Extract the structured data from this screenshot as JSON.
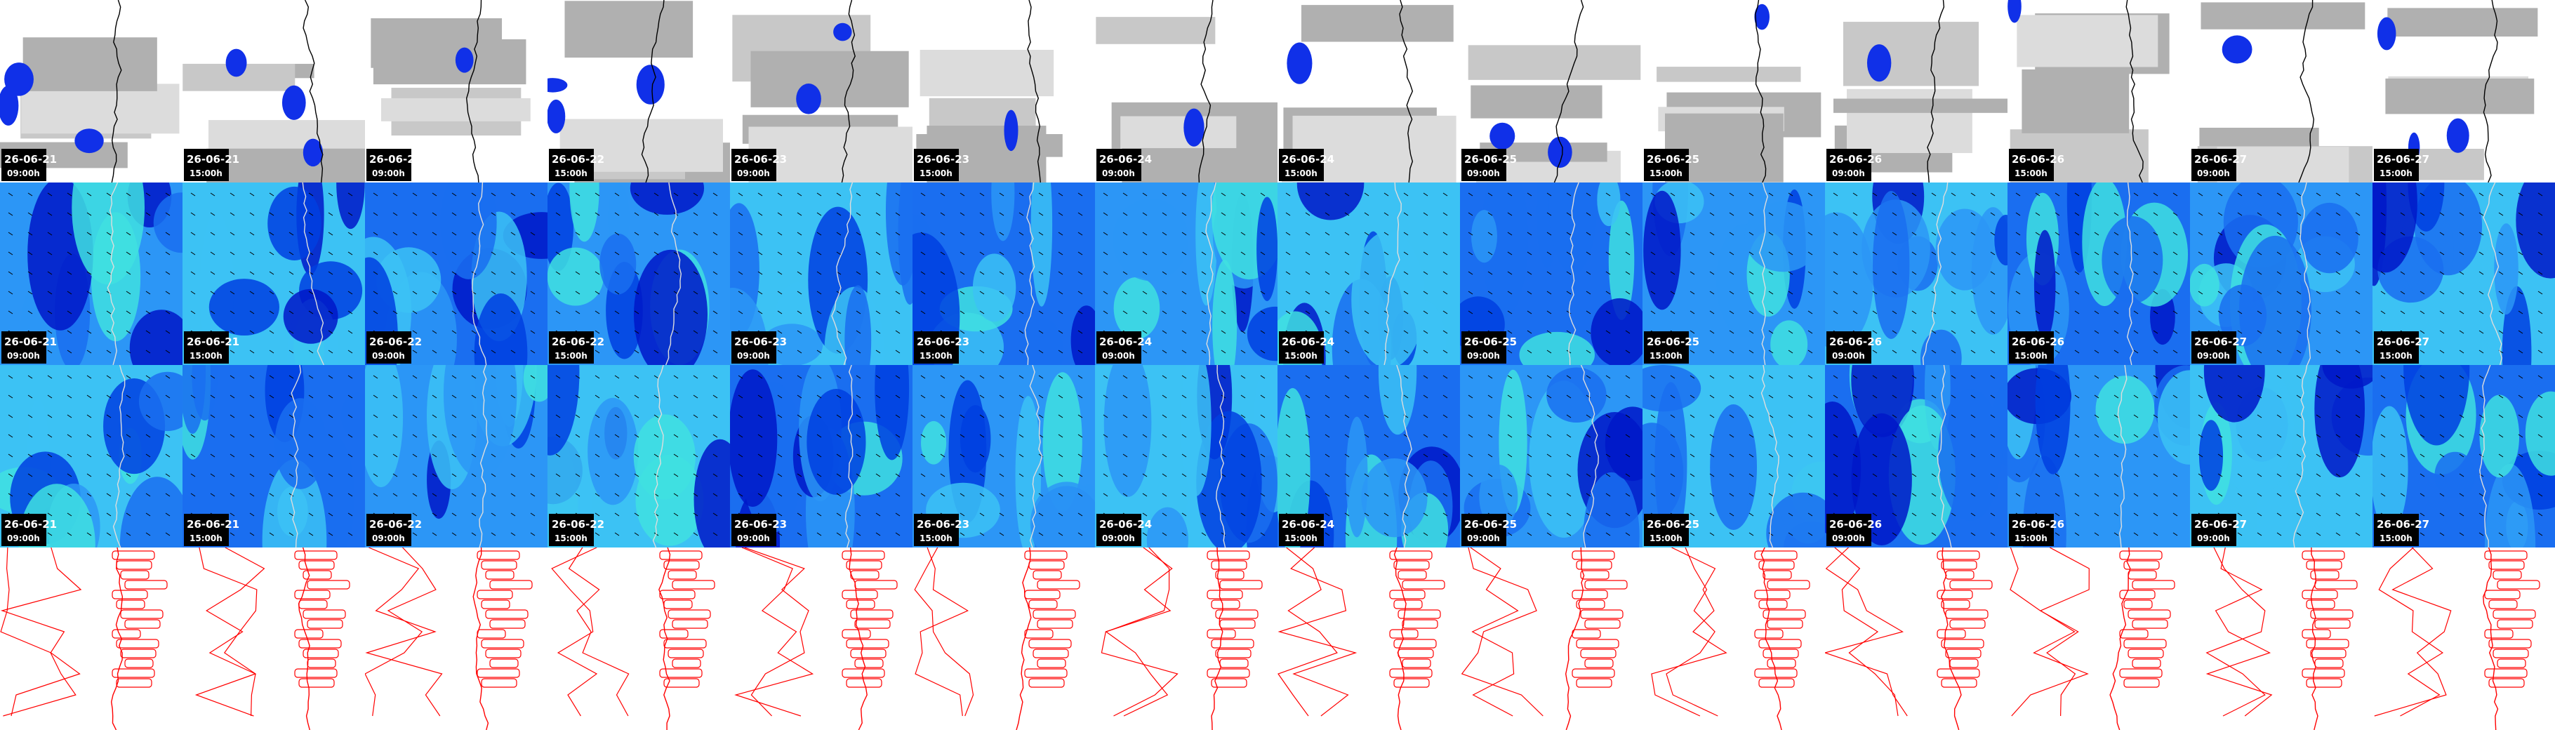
{
  "frames": [
    {
      "date": "26-06-21",
      "time": "09:00h"
    },
    {
      "date": "26-06-21",
      "time": "15:00h"
    },
    {
      "date": "26-06-22",
      "time": "09:00h"
    },
    {
      "date": "26-06-22",
      "time": "15:00h"
    },
    {
      "date": "26-06-23",
      "time": "09:00h"
    },
    {
      "date": "26-06-23",
      "time": "15:00h"
    },
    {
      "date": "26-06-24",
      "time": "09:00h"
    },
    {
      "date": "26-06-24",
      "time": "15:00h"
    },
    {
      "date": "26-06-25",
      "time": "09:00h"
    },
    {
      "date": "26-06-25",
      "time": "15:00h"
    },
    {
      "date": "26-06-26",
      "time": "09:00h"
    },
    {
      "date": "26-06-26",
      "time": "15:00h"
    },
    {
      "date": "26-06-27",
      "time": "09:00h"
    },
    {
      "date": "26-06-27",
      "time": "15:00h"
    }
  ]
}
